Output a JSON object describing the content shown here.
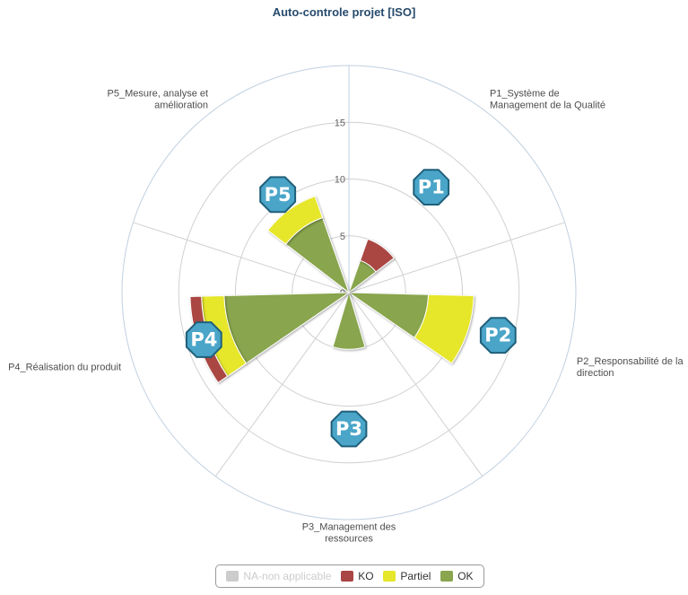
{
  "chart_data": {
    "type": "polar-stacked-column",
    "title": "Auto-controle projet [ISO]",
    "categories": [
      "P1_Système de Management de la Qualité",
      "P2_Responsabilité de la direction",
      "P3_Management des ressources",
      "P4_Réalisation du produit",
      "P5_Mesure, analyse et amélioration"
    ],
    "series": [
      {
        "name": "NA-non applicable",
        "values": [
          0,
          0,
          0,
          0,
          0
        ],
        "color": "#cccccc",
        "visible": false
      },
      {
        "name": "KO",
        "values": [
          2,
          0,
          0,
          1,
          0
        ],
        "color": "#aa4643",
        "visible": true
      },
      {
        "name": "Partiel",
        "values": [
          0,
          4,
          0,
          2,
          2
        ],
        "color": "#e6e62a",
        "visible": true
      },
      {
        "name": "OK",
        "values": [
          3,
          7,
          5,
          11,
          7
        ],
        "color": "#89a54e",
        "visible": true
      }
    ],
    "stack_order": [
      "OK",
      "Partiel",
      "KO"
    ],
    "yaxis": {
      "min": 0,
      "max": 20,
      "ticks": [
        0,
        5,
        10,
        15
      ]
    },
    "grid": true,
    "legend_position": "bottom-center"
  },
  "annotations": [
    {
      "label": "P1",
      "color": "#4aa5c8"
    },
    {
      "label": "P2",
      "color": "#4aa5c8"
    },
    {
      "label": "P3",
      "color": "#4aa5c8"
    },
    {
      "label": "P4",
      "color": "#4aa5c8"
    },
    {
      "label": "P5",
      "color": "#4aa5c8"
    }
  ]
}
